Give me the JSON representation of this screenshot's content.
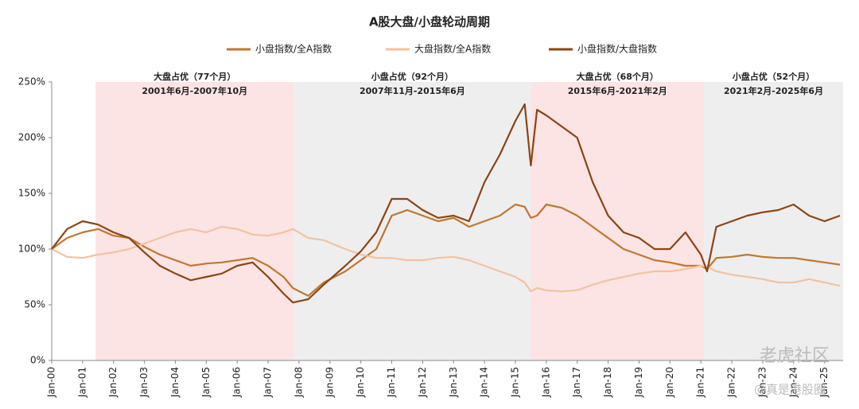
{
  "chart_data": {
    "type": "line",
    "title": "A股大盘/小盘轮动周期",
    "x": [
      2000,
      2000.5,
      2001,
      2001.5,
      2002,
      2002.5,
      2003,
      2003.5,
      2004,
      2004.5,
      2005,
      2005.5,
      2006,
      2006.5,
      2007,
      2007.5,
      2007.8,
      2008.3,
      2008.8,
      2009.5,
      2010,
      2010.5,
      2011,
      2011.5,
      2012,
      2012.5,
      2013,
      2013.5,
      2014,
      2014.5,
      2015,
      2015.3,
      2015.5,
      2015.7,
      2016,
      2016.5,
      2017,
      2017.5,
      2018,
      2018.5,
      2019,
      2019.5,
      2020,
      2020.5,
      2021,
      2021.2,
      2021.5,
      2022,
      2022.5,
      2023,
      2023.5,
      2024,
      2024.5,
      2025,
      2025.5
    ],
    "series": [
      {
        "name": "小盘指数/全A指数",
        "color": "#c0772f",
        "values": [
          100,
          110,
          115,
          118,
          112,
          110,
          102,
          95,
          90,
          85,
          87,
          88,
          90,
          92,
          85,
          75,
          65,
          58,
          70,
          80,
          90,
          100,
          130,
          135,
          130,
          125,
          128,
          120,
          125,
          130,
          140,
          138,
          128,
          130,
          140,
          137,
          130,
          120,
          110,
          100,
          95,
          90,
          88,
          85,
          85,
          82,
          92,
          93,
          95,
          93,
          92,
          92,
          90,
          88,
          86
        ]
      },
      {
        "name": "大盘指数/全A指数",
        "color": "#f2c2a0",
        "values": [
          100,
          93,
          92,
          95,
          97,
          100,
          105,
          110,
          115,
          118,
          115,
          120,
          118,
          113,
          112,
          115,
          118,
          110,
          108,
          100,
          95,
          92,
          92,
          90,
          90,
          92,
          93,
          90,
          85,
          80,
          75,
          70,
          62,
          65,
          63,
          62,
          63,
          68,
          72,
          75,
          78,
          80,
          80,
          82,
          85,
          84,
          80,
          77,
          75,
          73,
          70,
          70,
          73,
          70,
          67
        ]
      },
      {
        "name": "小盘指数/大盘指数",
        "color": "#8b4513",
        "values": [
          100,
          118,
          125,
          122,
          115,
          110,
          97,
          85,
          78,
          72,
          75,
          78,
          85,
          88,
          75,
          60,
          52,
          55,
          68,
          85,
          98,
          115,
          145,
          145,
          135,
          128,
          130,
          125,
          160,
          185,
          215,
          230,
          175,
          225,
          220,
          210,
          200,
          160,
          130,
          115,
          110,
          100,
          100,
          115,
          95,
          80,
          120,
          125,
          130,
          133,
          135,
          140,
          130,
          125,
          130
        ]
      }
    ],
    "xlim": [
      2000,
      2025.6
    ],
    "xticks": [
      {
        "value": 2000,
        "label": "Jan-00"
      },
      {
        "value": 2001,
        "label": "Jan-01"
      },
      {
        "value": 2002,
        "label": "Jan-02"
      },
      {
        "value": 2003,
        "label": "Jan-03"
      },
      {
        "value": 2004,
        "label": "Jan-04"
      },
      {
        "value": 2005,
        "label": "Jan-05"
      },
      {
        "value": 2006,
        "label": "Jan-06"
      },
      {
        "value": 2007,
        "label": "Jan-07"
      },
      {
        "value": 2008,
        "label": "Jan-08"
      },
      {
        "value": 2009,
        "label": "Jan-09"
      },
      {
        "value": 2010,
        "label": "Jan-10"
      },
      {
        "value": 2011,
        "label": "Jan-11"
      },
      {
        "value": 2012,
        "label": "Jan-12"
      },
      {
        "value": 2013,
        "label": "Jan-13"
      },
      {
        "value": 2014,
        "label": "Jan-14"
      },
      {
        "value": 2015,
        "label": "Jan-15"
      },
      {
        "value": 2016,
        "label": "Jan-16"
      },
      {
        "value": 2017,
        "label": "Jan-17"
      },
      {
        "value": 2018,
        "label": "Jan-18"
      },
      {
        "value": 2019,
        "label": "Jan-19"
      },
      {
        "value": 2020,
        "label": "Jan-20"
      },
      {
        "value": 2021,
        "label": "Jan-21"
      },
      {
        "value": 2022,
        "label": "Jan-22"
      },
      {
        "value": 2023,
        "label": "Jan-23"
      },
      {
        "value": 2024,
        "label": "Jan-24"
      },
      {
        "value": 2025,
        "label": "Jan-25"
      }
    ],
    "ylim": [
      0,
      250
    ],
    "yticks": [
      {
        "value": 0,
        "label": "0%"
      },
      {
        "value": 50,
        "label": "50%"
      },
      {
        "value": 100,
        "label": "100%"
      },
      {
        "value": 150,
        "label": "150%"
      },
      {
        "value": 200,
        "label": "200%"
      },
      {
        "value": 250,
        "label": "250%"
      }
    ],
    "regions": [
      {
        "label": "大盘占优（77个月）",
        "period": "2001年6月-2007年10月",
        "start": 2001.42,
        "end": 2007.83,
        "color": "#fce4e4"
      },
      {
        "label": "小盘占优（92个月）",
        "period": "2007年11月-2015年6月",
        "start": 2007.83,
        "end": 2015.5,
        "color": "#eeeeee"
      },
      {
        "label": "大盘占优（68个月）",
        "period": "2015年6月-2021年2月",
        "start": 2015.5,
        "end": 2021.1,
        "color": "#fce4e4"
      },
      {
        "label": "小盘占优（52个月）",
        "period": "2021年2月-2025年6月",
        "start": 2021.1,
        "end": 2025.6,
        "color": "#eeeeee"
      }
    ],
    "watermark": [
      "老虎社区",
      "@真是港股圈"
    ]
  }
}
